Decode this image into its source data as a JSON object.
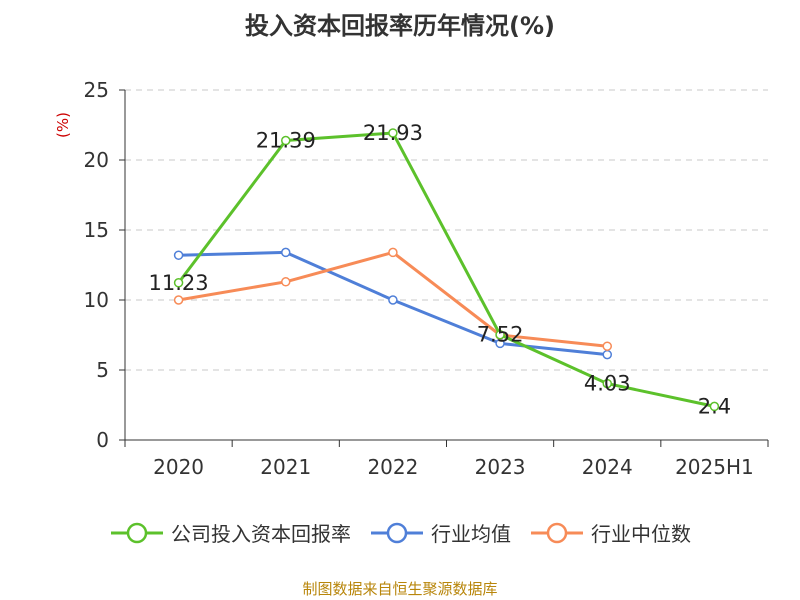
{
  "title": "投入资本回报率历年情况(%)",
  "source": "制图数据来自恒生聚源数据库",
  "chart_data": {
    "type": "line",
    "title": "投入资本回报率历年情况(%)",
    "ylabel": "(%)",
    "xlabel": "",
    "ylim": [
      0,
      25
    ],
    "yticks": [
      0,
      5,
      10,
      15,
      20,
      25
    ],
    "categories": [
      "2020",
      "2021",
      "2022",
      "2023",
      "2024",
      "2025H1"
    ],
    "grid": true,
    "legend_position": "bottom",
    "series": [
      {
        "name": "公司投入资本回报率",
        "color": "#5cc12b",
        "values": [
          11.23,
          21.39,
          21.93,
          7.52,
          4.03,
          2.4
        ],
        "labels": [
          "11.23",
          "21.39",
          "21.93",
          "7.52",
          "4.03",
          "2.4"
        ]
      },
      {
        "name": "行业均值",
        "color": "#4f7fd8",
        "values": [
          13.2,
          13.4,
          10.0,
          6.9,
          6.1,
          null
        ]
      },
      {
        "name": "行业中位数",
        "color": "#f78b57",
        "values": [
          10.0,
          11.3,
          13.4,
          7.5,
          6.7,
          null
        ]
      }
    ]
  }
}
